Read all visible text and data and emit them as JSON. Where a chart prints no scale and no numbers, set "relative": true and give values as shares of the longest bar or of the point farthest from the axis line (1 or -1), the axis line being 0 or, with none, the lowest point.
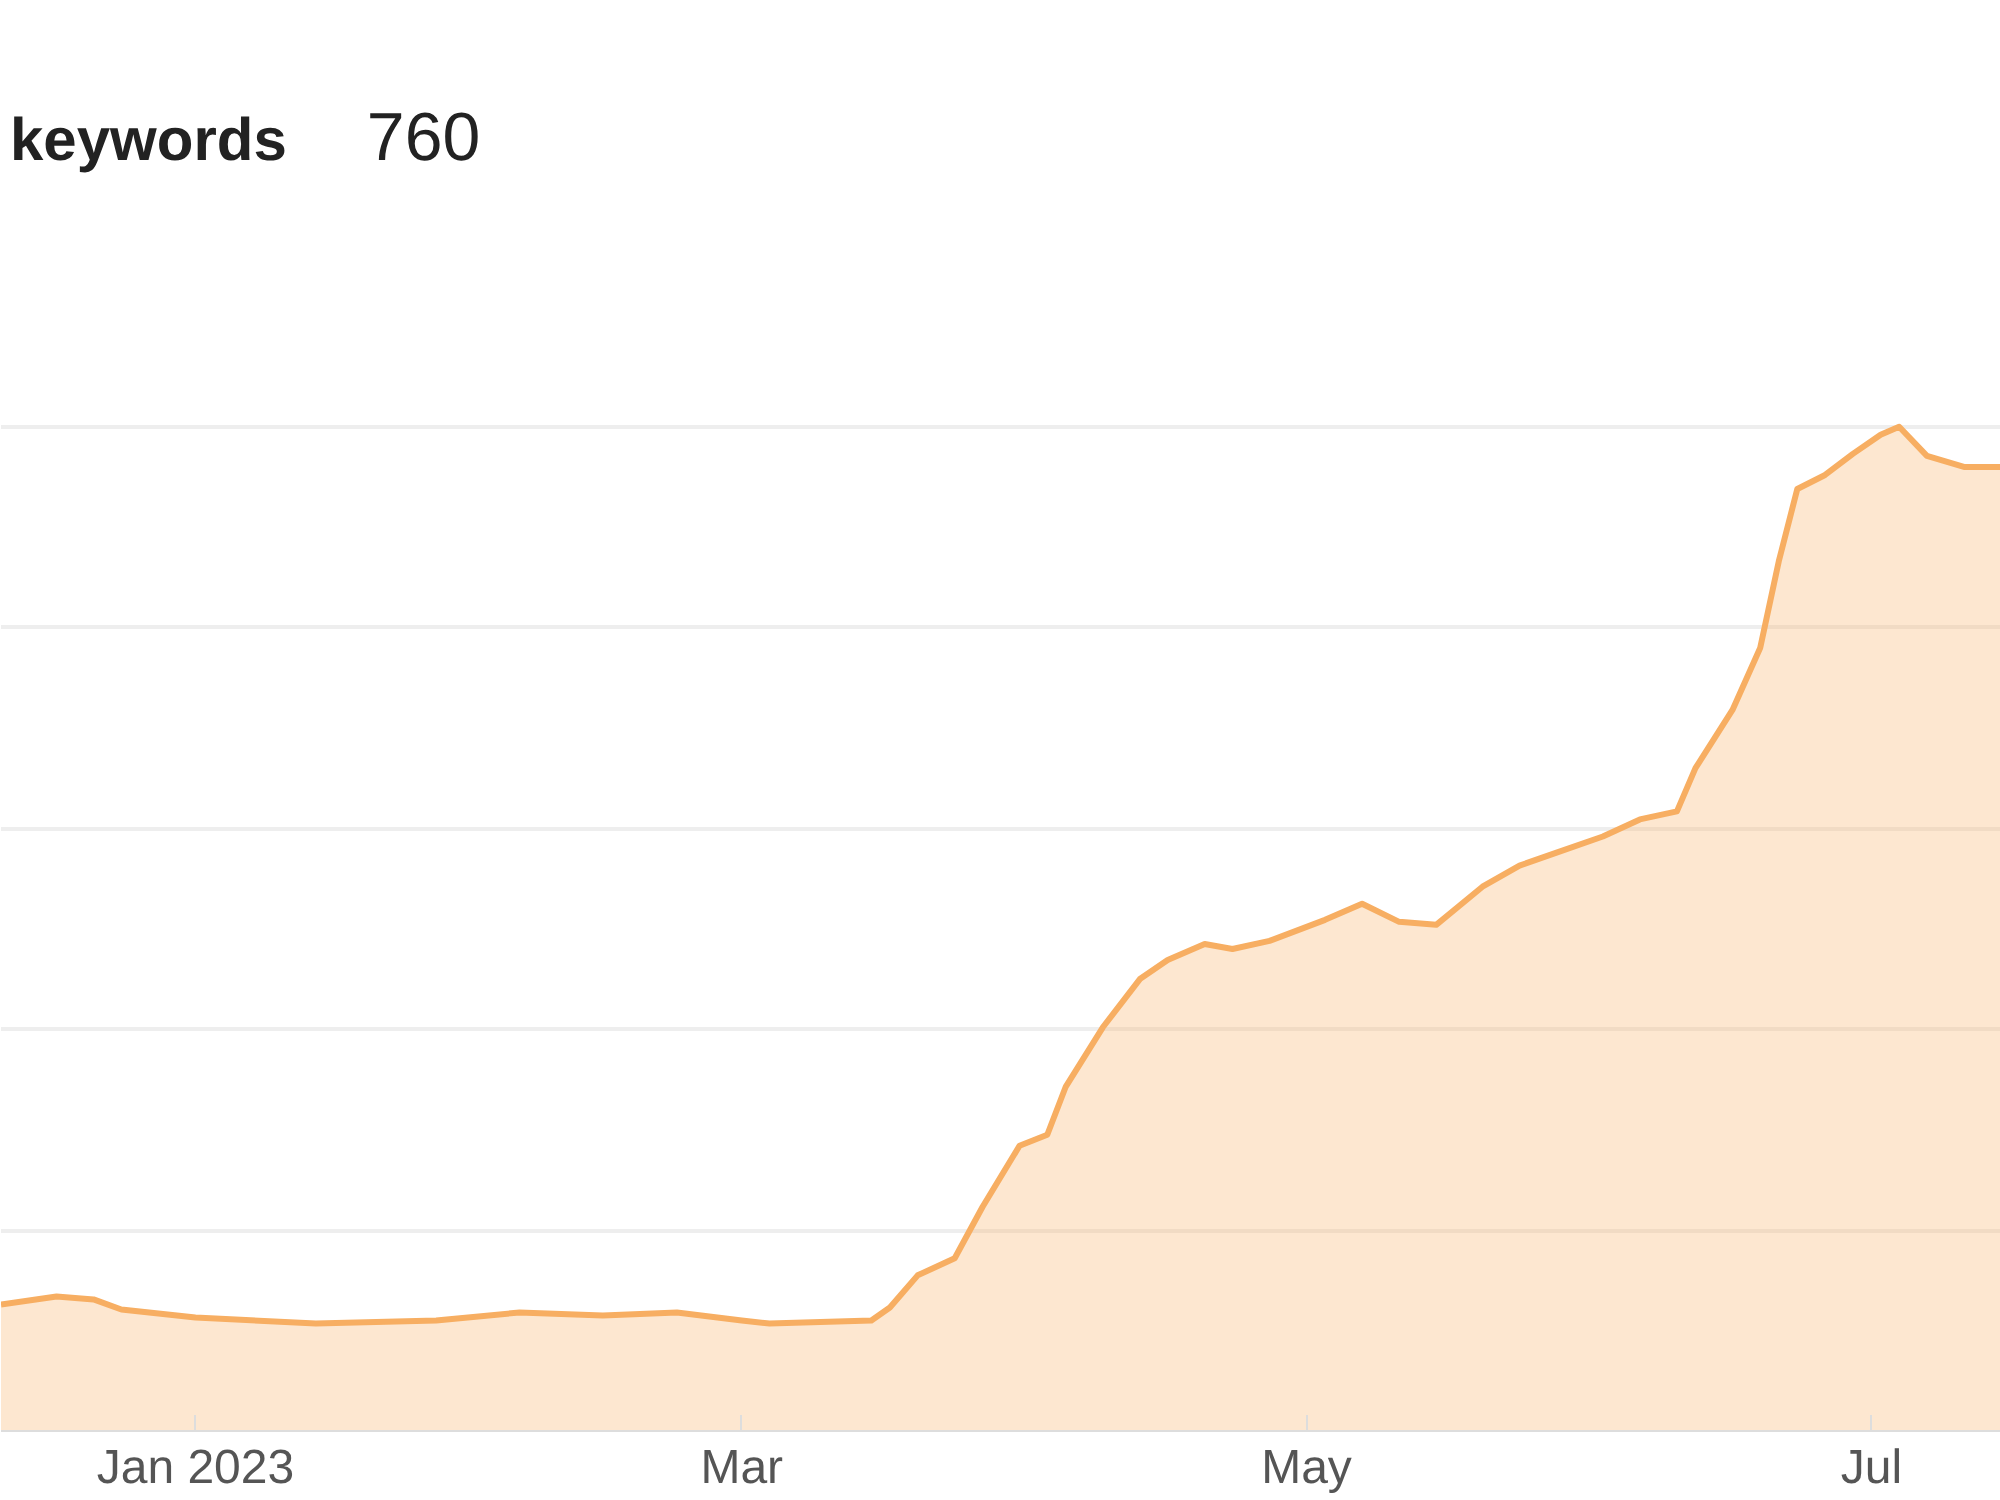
{
  "chart_data": {
    "type": "area",
    "title": "keywords",
    "annotations": [
      "760"
    ],
    "relative": true,
    "grid": "y",
    "xlim": [
      "2022-12-11",
      "2023-07-15"
    ],
    "xticks": [
      {
        "value": "2023-01-01",
        "label": "Jan 2023"
      },
      {
        "value": "2023-03-01",
        "label": "Mar"
      },
      {
        "value": "2023-05-01",
        "label": "May"
      },
      {
        "value": "2023-07-01",
        "label": "Jul"
      }
    ],
    "x": [
      "2022-12-11",
      "2022-12-17",
      "2022-12-21",
      "2022-12-24",
      "2023-01-01",
      "2023-01-14",
      "2023-01-27",
      "2023-02-05",
      "2023-02-14",
      "2023-02-22",
      "2023-03-01",
      "2023-03-04",
      "2023-03-15",
      "2023-03-17",
      "2023-03-20",
      "2023-03-24",
      "2023-03-27",
      "2023-03-31",
      "2023-04-03",
      "2023-04-05",
      "2023-04-09",
      "2023-04-13",
      "2023-04-16",
      "2023-04-20",
      "2023-04-23",
      "2023-04-27",
      "2023-05-03",
      "2023-05-07",
      "2023-05-11",
      "2023-05-15",
      "2023-05-20",
      "2023-05-24",
      "2023-05-28",
      "2023-06-02",
      "2023-06-06",
      "2023-06-10",
      "2023-06-12",
      "2023-06-16",
      "2023-06-19",
      "2023-06-21",
      "2023-06-23",
      "2023-06-26",
      "2023-06-29",
      "2023-07-02",
      "2023-07-04",
      "2023-07-07",
      "2023-07-11",
      "2023-07-15"
    ],
    "series": [
      {
        "color": "#f7ae62",
        "values": [
          0.126,
          0.134,
          0.131,
          0.121,
          0.113,
          0.107,
          0.11,
          0.118,
          0.115,
          0.118,
          0.11,
          0.107,
          0.11,
          0.123,
          0.155,
          0.172,
          0.223,
          0.284,
          0.295,
          0.343,
          0.402,
          0.45,
          0.469,
          0.485,
          0.48,
          0.488,
          0.509,
          0.525,
          0.507,
          0.504,
          0.542,
          0.563,
          0.576,
          0.592,
          0.609,
          0.617,
          0.66,
          0.718,
          0.78,
          0.866,
          0.938,
          0.952,
          0.973,
          0.992,
          1.0,
          0.971,
          0.96,
          0.96
        ]
      }
    ]
  }
}
